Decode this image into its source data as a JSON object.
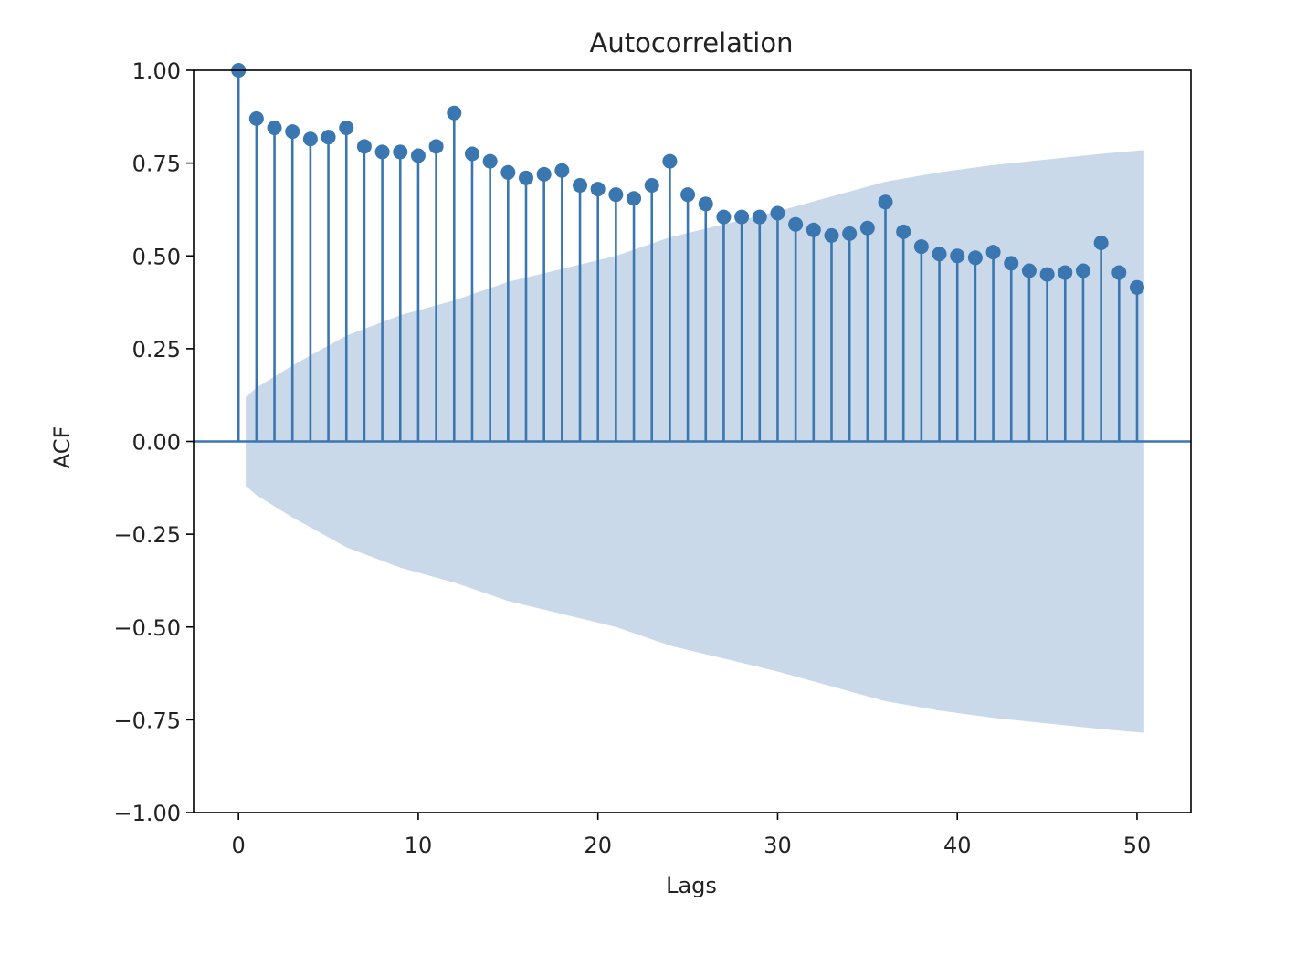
{
  "chart_data": {
    "type": "stem",
    "title": "Autocorrelation",
    "xlabel": "Lags",
    "ylabel": "ACF",
    "xlim": [
      -2.5,
      53
    ],
    "ylim": [
      -1.0,
      1.0
    ],
    "xticks": [
      0,
      10,
      20,
      30,
      40,
      50
    ],
    "xtick_labels": [
      "0",
      "10",
      "20",
      "30",
      "40",
      "50"
    ],
    "yticks": [
      -1.0,
      -0.75,
      -0.5,
      -0.25,
      0.0,
      0.25,
      0.5,
      0.75,
      1.0
    ],
    "ytick_labels": [
      "−1.00",
      "−0.75",
      "−0.50",
      "−0.25",
      "0.00",
      "0.25",
      "0.50",
      "0.75",
      "1.00"
    ],
    "grid": false,
    "colors": {
      "stem": "#3a76b0",
      "marker": "#3a76b0",
      "band": "#c9d9ea"
    },
    "lags": [
      0,
      1,
      2,
      3,
      4,
      5,
      6,
      7,
      8,
      9,
      10,
      11,
      12,
      13,
      14,
      15,
      16,
      17,
      18,
      19,
      20,
      21,
      22,
      23,
      24,
      25,
      26,
      27,
      28,
      29,
      30,
      31,
      32,
      33,
      34,
      35,
      36,
      37,
      38,
      39,
      40,
      41,
      42,
      43,
      44,
      45,
      46,
      47,
      48,
      49,
      50
    ],
    "acf": [
      1.0,
      0.87,
      0.845,
      0.835,
      0.815,
      0.82,
      0.845,
      0.795,
      0.78,
      0.78,
      0.77,
      0.795,
      0.885,
      0.775,
      0.755,
      0.725,
      0.71,
      0.72,
      0.73,
      0.69,
      0.68,
      0.665,
      0.655,
      0.69,
      0.755,
      0.665,
      0.64,
      0.605,
      0.605,
      0.605,
      0.615,
      0.585,
      0.57,
      0.555,
      0.56,
      0.575,
      0.645,
      0.565,
      0.525,
      0.505,
      0.5,
      0.495,
      0.51,
      0.48,
      0.46,
      0.45,
      0.455,
      0.46,
      0.535,
      0.455,
      0.415
    ],
    "confidence_band": [
      [
        0.4,
        0.12
      ],
      [
        1,
        0.145
      ],
      [
        3,
        0.205
      ],
      [
        6,
        0.285
      ],
      [
        9,
        0.34
      ],
      [
        12,
        0.38
      ],
      [
        15,
        0.43
      ],
      [
        18,
        0.465
      ],
      [
        21,
        0.5
      ],
      [
        24,
        0.55
      ],
      [
        27,
        0.585
      ],
      [
        30,
        0.62
      ],
      [
        33,
        0.66
      ],
      [
        36,
        0.7
      ],
      [
        39,
        0.725
      ],
      [
        42,
        0.745
      ],
      [
        45,
        0.76
      ],
      [
        48,
        0.775
      ],
      [
        50.4,
        0.785
      ]
    ]
  }
}
